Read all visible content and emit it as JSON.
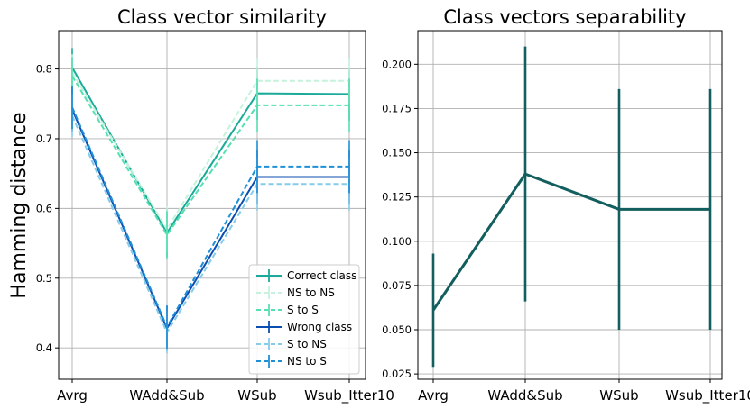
{
  "chart_data": [
    {
      "type": "line",
      "title": "Class vector similarity",
      "xlabel": "",
      "ylabel": "Hamming distance",
      "categories": [
        "Avrg",
        "WAdd&Sub",
        "WSub",
        "Wsub_Itter10"
      ],
      "ylim": [
        0.355,
        0.855
      ],
      "yticks": [
        "0.4",
        "0.5",
        "0.6",
        "0.7",
        "0.8"
      ],
      "grid": true,
      "legend_position": "lower-right",
      "series": [
        {
          "name": "Correct class",
          "values": [
            0.802,
            0.565,
            0.765,
            0.764
          ],
          "err": [
            0.028,
            0.035,
            0.038,
            0.038
          ],
          "color": "#1aaa99",
          "dash": "solid"
        },
        {
          "name": "NS to NS",
          "values": [
            0.795,
            0.57,
            0.783,
            0.783
          ],
          "err": [
            0.026,
            0.033,
            0.033,
            0.033
          ],
          "color": "#c5f2dc",
          "dash": "dashed"
        },
        {
          "name": "S to S",
          "values": [
            0.79,
            0.562,
            0.748,
            0.748
          ],
          "err": [
            0.027,
            0.034,
            0.038,
            0.038
          ],
          "color": "#55e0b0",
          "dash": "dashed"
        },
        {
          "name": "Wrong class",
          "values": [
            0.742,
            0.428,
            0.645,
            0.645
          ],
          "err": [
            0.032,
            0.032,
            0.038,
            0.038
          ],
          "color": "#0c4db0",
          "dash": "solid"
        },
        {
          "name": "S to NS",
          "values": [
            0.733,
            0.422,
            0.635,
            0.635
          ],
          "err": [
            0.031,
            0.03,
            0.038,
            0.038
          ],
          "color": "#85cbea",
          "dash": "dashed"
        },
        {
          "name": "NS to S",
          "values": [
            0.745,
            0.43,
            0.66,
            0.66
          ],
          "err": [
            0.031,
            0.031,
            0.038,
            0.038
          ],
          "color": "#1f8fd6",
          "dash": "dashed"
        }
      ]
    },
    {
      "type": "line",
      "title": "Class vectors separability",
      "xlabel": "",
      "ylabel": "",
      "categories": [
        "Avrg",
        "WAdd&Sub",
        "WSub",
        "Wsub_Itter10"
      ],
      "ylim": [
        0.022,
        0.219
      ],
      "yticks": [
        "0.025",
        "0.050",
        "0.075",
        "0.100",
        "0.125",
        "0.150",
        "0.175",
        "0.200"
      ],
      "grid": true,
      "series": [
        {
          "name": "",
          "values": [
            0.061,
            0.138,
            0.118,
            0.118
          ],
          "err": [
            0.032,
            0.072,
            0.068,
            0.068
          ],
          "color": "#135e5e",
          "dash": "solid"
        }
      ]
    }
  ]
}
